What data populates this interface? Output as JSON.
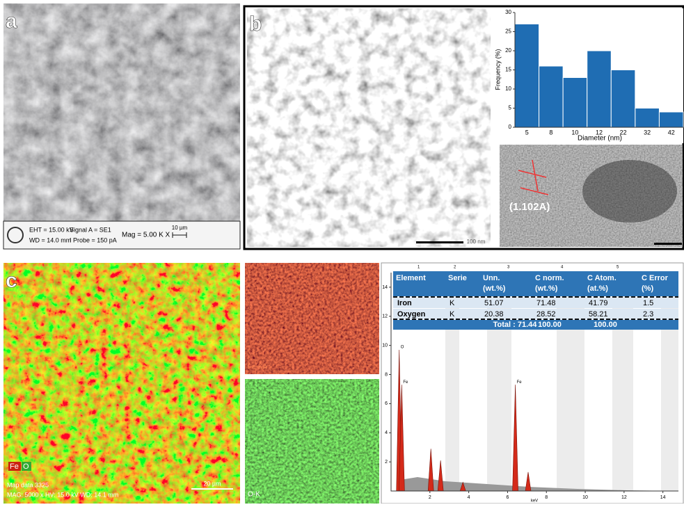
{
  "panels": {
    "a": "a",
    "b": "b",
    "c": "c"
  },
  "sem_info": {
    "eht": "EHT = 15.00 kV",
    "signal": "Signal A = SE1",
    "mag": "Mag =  5.00 K X",
    "wd": "WD = 14.0 mm",
    "probe": "I Probe =    150 pA",
    "scale": "10 µm"
  },
  "tem_scale": "100 nm",
  "hrtem_label": "(1.102A)",
  "histogram": {
    "type": "bar",
    "ylabel": "Frequency (%)",
    "xlabel": "Diameter (nm)",
    "categories": [
      "5",
      "8",
      "10",
      "12",
      "22",
      "32",
      "42"
    ],
    "values": [
      27,
      16,
      13,
      20,
      15,
      5,
      4
    ],
    "color": "#1f6db3",
    "ylim": [
      0,
      30
    ],
    "yticks": [
      0,
      5,
      10,
      15,
      20,
      25,
      30
    ]
  },
  "map": {
    "legend_fe": "Fe",
    "legend_o": "O",
    "caption1": "Map data 3325",
    "caption2": "MAG: 5000 x  HV: 15.0 kV  WD: 14.1 mm",
    "scale": "20 µm",
    "fe_label": "Fe-KA",
    "o_label": "O-K"
  },
  "eds_table": {
    "column_numbers": [
      "1",
      "2",
      "3",
      "4",
      "5"
    ],
    "headers": [
      "Element",
      "Serie",
      "Unn. (wt.%)",
      "C norm. (wt.%)",
      "C Atom. (at.%)",
      "C Error (%)"
    ],
    "rows": [
      [
        "Iron",
        "K",
        "51.07",
        "71.48",
        "41.79",
        "1.5"
      ],
      [
        "Oxygen",
        "K",
        "20.38",
        "28.52",
        "58.21",
        "2.3"
      ]
    ],
    "total": [
      "Total : 71.44",
      "100.00",
      "100.00"
    ]
  },
  "spectrum": {
    "type": "line",
    "xlabel": "keV",
    "xlim": [
      0,
      14.8
    ],
    "ylim": [
      0,
      15
    ],
    "xticks": [
      2,
      4,
      6,
      8,
      10,
      12,
      14
    ],
    "yticks": [
      2,
      4,
      6,
      8,
      10,
      12,
      14
    ],
    "color": "#d42a1a",
    "peaks": {
      "x": [
        0.42,
        0.55,
        2.05,
        2.55,
        6.4,
        7.06,
        3.7
      ],
      "y": [
        9.7,
        7.3,
        2.9,
        2.1,
        7.3,
        1.3,
        0.6
      ],
      "labels": [
        "O",
        "Fe",
        null,
        null,
        "Fe",
        null,
        null
      ]
    }
  }
}
